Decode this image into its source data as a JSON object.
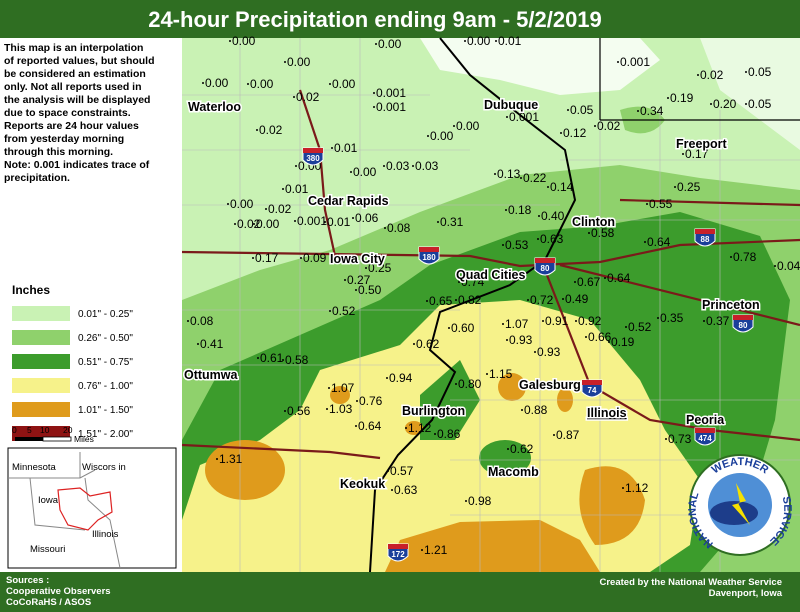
{
  "header": {
    "title": "24-hour Precipitation ending 9am - 5/2/2019"
  },
  "description": [
    "This map is an interpolation",
    "of reported values, but should",
    "be considered an estimation",
    "only. Not all reports used in",
    "the analysis will be displayed",
    "due to space constraints.",
    "Reports are 24 hour values",
    "from yesterday morning",
    "through this morning.",
    "Note: 0.001 indicates trace of",
    "precipitation."
  ],
  "legend": {
    "title": "Inches",
    "items": [
      {
        "label": "0.01\" - 0.25\"",
        "color": "#c9f2b4"
      },
      {
        "label": "0.26\" - 0.50\"",
        "color": "#8fd16c"
      },
      {
        "label": "0.51\" - 0.75\"",
        "color": "#3c9c2c"
      },
      {
        "label": "0.76\" - 1.00\"",
        "color": "#f6f28a"
      },
      {
        "label": "1.01\" - 1.50\"",
        "color": "#df9b1c"
      },
      {
        "label": "1.51\" - 2.00\"",
        "color": "#8e1313"
      }
    ]
  },
  "scale": {
    "ticks": [
      "0",
      "5",
      "10",
      "20"
    ],
    "unit": "Miles"
  },
  "inset": {
    "labels": [
      "Minnesota",
      "Wiscors in",
      "Iowa",
      "Illinois",
      "Missouri"
    ]
  },
  "cities": [
    "Waterloo",
    "Dubuque",
    "Freeport",
    "Cedar Rapids",
    "Clinton",
    "Iowa City",
    "Quad Cities",
    "Princeton",
    "Ottumwa",
    "Galesburg",
    "Burlington",
    "Illinois",
    "Peoria",
    "Keokuk",
    "Macomb"
  ],
  "highways": [
    "380",
    "180",
    "88",
    "80",
    "74",
    "474",
    "172",
    "80"
  ],
  "stations": [
    "0.00",
    "0.00",
    "0.00",
    "0.01",
    "0.00",
    "0.001",
    "0.02",
    "0.05",
    "0.00",
    "0.00",
    "0.00",
    "0.001",
    "0.001",
    "0.02",
    "0.19",
    "0.20",
    "0.05",
    "0.05",
    "0.34",
    "0.001",
    "0.02",
    "0.12",
    "0.00",
    "0.00",
    "0.02",
    "0.01",
    "0.00",
    "0.03",
    "0.03",
    "0.17",
    "0.13",
    "0.22",
    "0.14",
    "0.00",
    "0.01",
    "0.25",
    "0.00",
    "0.02",
    "0.55",
    "0.18",
    "0.40",
    "0.06",
    "0.31",
    "0.02",
    "0.00",
    "0.001",
    "0.01",
    "0.08",
    "0.63",
    "0.58",
    "0.64",
    "0.53",
    "0.17",
    "0.09",
    "0.25",
    "0.78",
    "0.04",
    "0.27",
    "0.74",
    "0.64",
    "0.50",
    "0.67",
    "0.49",
    "0.72",
    "0.65",
    "0.82",
    "0.52",
    "0.08",
    "0.35",
    "0.37",
    "0.52",
    "1.07",
    "0.91",
    "0.92",
    "0.60",
    "0.93",
    "0.66",
    "0.19",
    "0.41",
    "0.62",
    "0.93",
    "0.61",
    "0.58",
    "0.94",
    "1.15",
    "0.80",
    "1.07",
    "1.03",
    "0.76",
    "0.56",
    "0.88",
    "1.12",
    "0.64",
    "0.86",
    "0.87",
    "0.73",
    "0.62",
    "1.31",
    "0.57",
    "0.63",
    "0.98",
    "1.12",
    "1.21"
  ],
  "footer": {
    "sources": [
      "Sources :",
      "Cooperative Observers",
      "CoCoRaHS / ASOS"
    ],
    "credit": [
      "Created by the National Weather Service",
      "Davenport, Iowa"
    ]
  },
  "logo": {
    "top": "WEATHER",
    "left": "NATIONAL",
    "right": "SERVICE"
  }
}
